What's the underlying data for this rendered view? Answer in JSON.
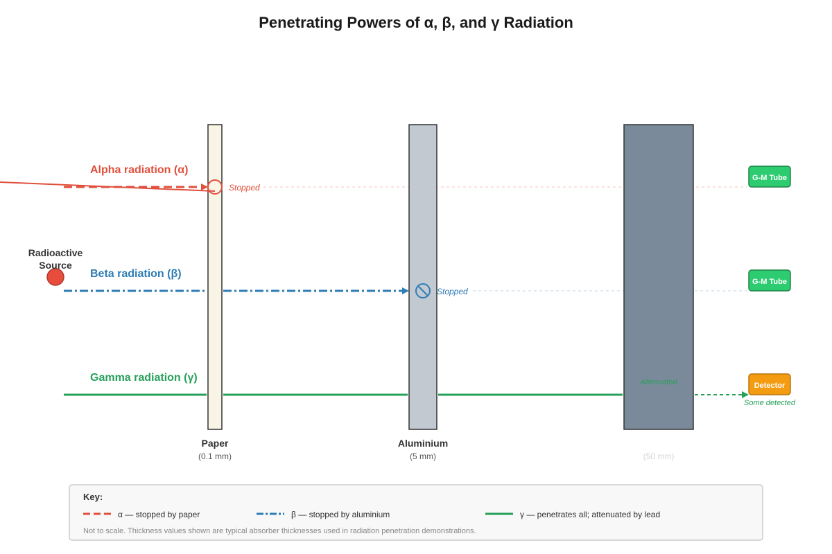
{
  "title": "Penetrating Powers of α, β, and γ Radiation",
  "source": {
    "label_line1": "Radioactive",
    "label_line2": "Source",
    "color": "#e74c3c"
  },
  "rays": {
    "alpha": {
      "label": "Alpha radiation (α)",
      "status": "Stopped",
      "detector": "G-M Tube",
      "color": "#e0503c"
    },
    "beta": {
      "label": "Beta radiation (β)",
      "status": "Stopped",
      "detector": "G-M Tube",
      "color": "#2e7db5"
    },
    "gamma": {
      "label": "Gamma radiation (γ)",
      "status": "Attenuated",
      "detector": "Detector",
      "result": "Some detected",
      "color": "#27a05a"
    }
  },
  "absorbers": {
    "paper": {
      "name": "Paper",
      "thickness": "(0.1 mm)",
      "fill": "#f8f4e6"
    },
    "aluminium": {
      "name": "Aluminium",
      "thickness": "(5 mm)",
      "fill": "#c2c9d1"
    },
    "lead": {
      "name": "",
      "thickness": "(50 mm)",
      "fill": "#7b8a9b"
    }
  },
  "detector_colors": {
    "gm_tube": "#2ecc71",
    "detector": "#f39c12"
  },
  "key": {
    "title": "Key:",
    "alpha": "α — stopped by paper",
    "beta": "β — stopped by aluminium",
    "gamma": "γ — penetrates all; attenuated by lead",
    "note": "Not to scale. Thickness values shown are typical absorber thicknesses used in radiation penetration demonstrations."
  }
}
